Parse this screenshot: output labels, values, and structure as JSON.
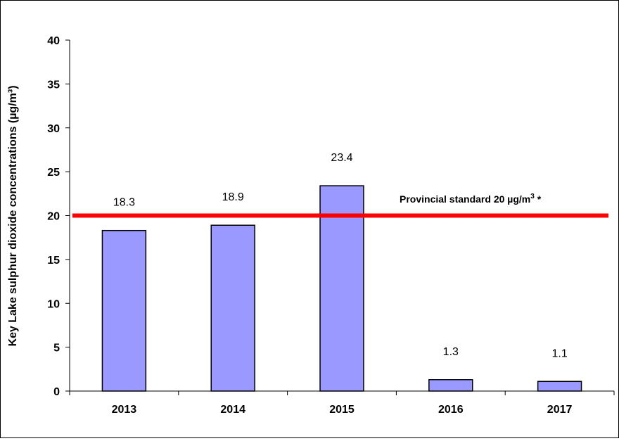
{
  "chart_data": {
    "type": "bar",
    "categories": [
      "2013",
      "2014",
      "2015",
      "2016",
      "2017"
    ],
    "values": [
      18.3,
      18.9,
      23.4,
      1.3,
      1.1
    ],
    "data_labels": [
      "18.3",
      "18.9",
      "23.4",
      "1.3",
      "1.1"
    ],
    "ylabel": "Key Lake sulphur dioxide concentrations (µg/m³)",
    "ylim": [
      0,
      40
    ],
    "yticks": [
      0,
      5,
      10,
      15,
      20,
      25,
      30,
      35,
      40
    ],
    "grid": false,
    "bar_color": "#9999ff",
    "reference_line": {
      "value": 20,
      "color": "#ff0000",
      "label_main": "Provincial standard 20 µg/m",
      "label_sup": "3",
      "label_suffix": " *"
    }
  }
}
